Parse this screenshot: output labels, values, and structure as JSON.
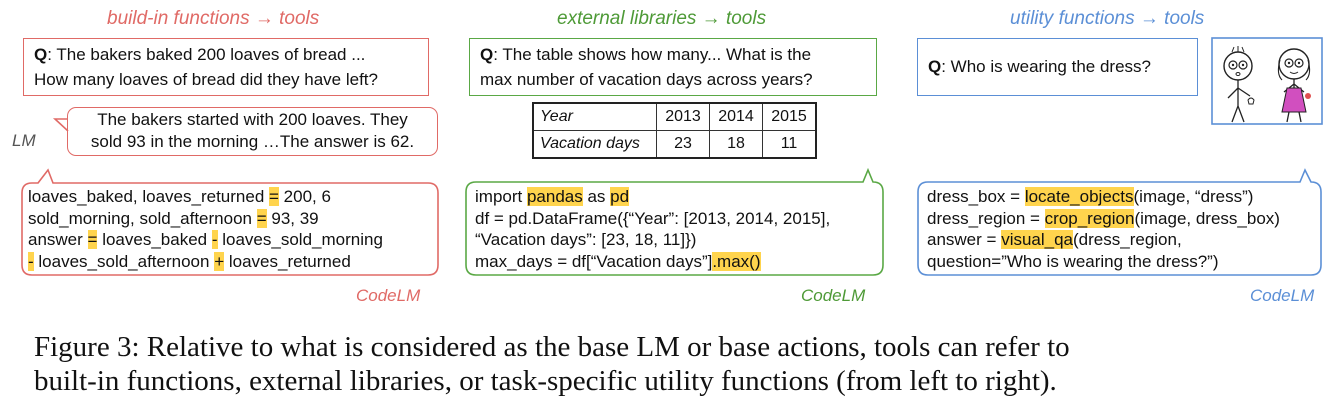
{
  "columns": [
    {
      "title": "build-in functions → tools",
      "question_prefix": "Q",
      "question_line1": ": The bakers baked 200 loaves of bread ...",
      "question_line2": "How many loaves of bread did they have left?",
      "lm_label": "LM",
      "lm_line1": "The bakers started with 200 loaves. They",
      "lm_line2": "sold 93 in the morning …The answer is 62.",
      "code_label": "CodeLM",
      "code": {
        "l1a": "loaves_baked, loaves_returned ",
        "l1b": "=",
        "l1c": " 200, 6",
        "l2a": "sold_morning, sold_afternoon ",
        "l2b": "=",
        "l2c": " 93, 39",
        "l3a": "answer ",
        "l3b": "=",
        "l3c": " loaves_baked ",
        "l3d": "-",
        "l3e": " loaves_sold_morning",
        "l4a": "-",
        "l4b": " loaves_sold_afternoon ",
        "l4c": "+",
        "l4d": " loaves_returned"
      }
    },
    {
      "title": "external libraries → tools",
      "question_prefix": "Q",
      "question_line1": ": The table shows how many... What is the",
      "question_line2": "max number of vacation days across years?",
      "table": {
        "header": [
          "Year",
          "2013",
          "2014",
          "2015"
        ],
        "row": [
          "Vacation days",
          "23",
          "18",
          "11"
        ]
      },
      "code_label": "CodeLM",
      "code": {
        "l1a": "import ",
        "l1b": "pandas",
        "l1c": " as ",
        "l1d": "pd",
        "l2": "df = pd.DataFrame({“Year”: [2013, 2014, 2015],",
        "l3": "“Vacation days”: [23, 18, 11]})",
        "l4a": "max_days = df[“Vacation days”]",
        "l4b": ".max()"
      }
    },
    {
      "title": "utility functions → tools",
      "question_prefix": "Q",
      "question_text": ": Who is wearing the dress?",
      "code_label": "CodeLM",
      "code": {
        "l1a": "dress_box = ",
        "l1b": "locate_objects",
        "l1c": "(image, “dress”)",
        "l2a": "dress_region = ",
        "l2b": "crop_region",
        "l2c": "(image, dress_box)",
        "l3a": "answer = ",
        "l3b": "visual_qa",
        "l3c": "(dress_region,",
        "l4": "question=”Who is wearing the dress?”)"
      }
    }
  ],
  "caption": {
    "line1": "Figure 3: Relative to what is considered as the base LM or base actions, tools can refer to",
    "line2": "built-in functions, external libraries, or task-specific utility functions (from left to right)."
  },
  "colors": {
    "red": "#e06a66",
    "green": "#5aa845",
    "blue": "#5b8fd6",
    "highlight": "#ffd44d"
  }
}
